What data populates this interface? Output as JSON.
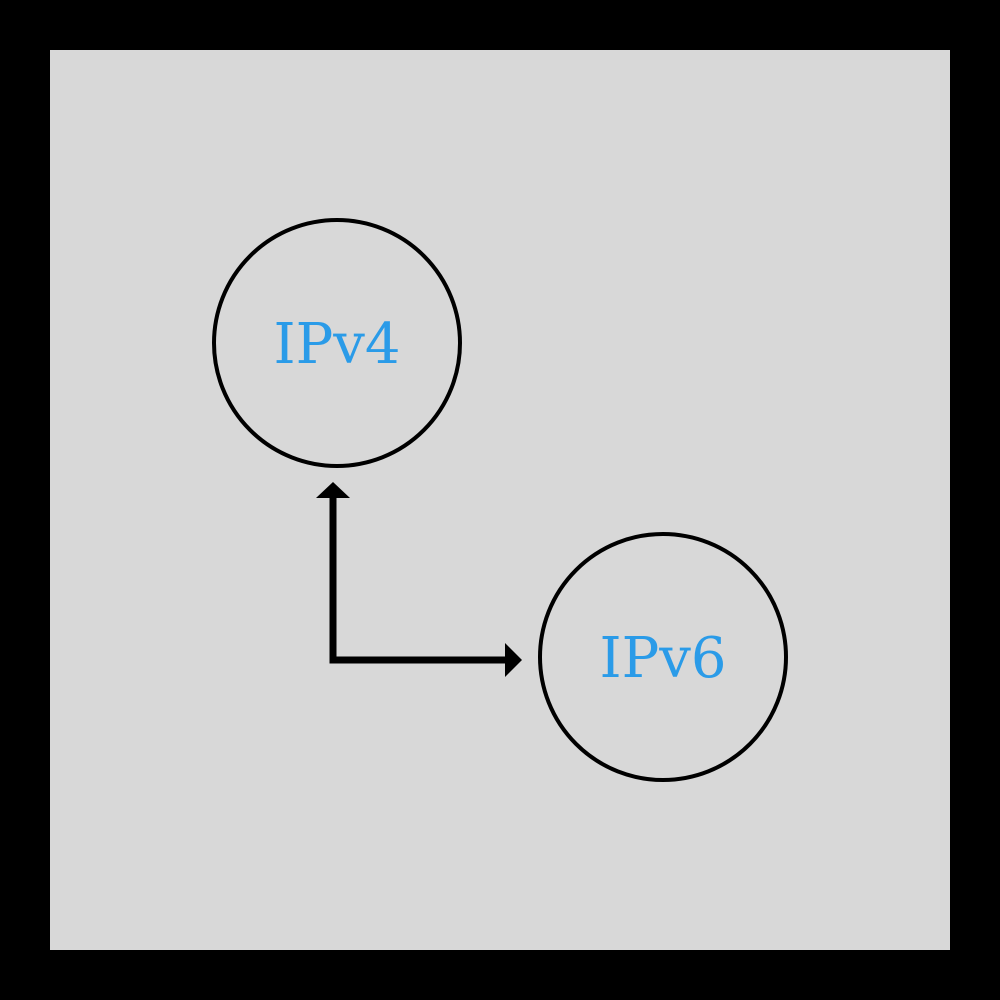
{
  "colors": {
    "frame": "#000000",
    "background": "#d8d8d8",
    "node_stroke": "#000000",
    "label": "#2a9be8",
    "arrow": "#000000"
  },
  "nodes": [
    {
      "id": "ipv4",
      "label": "IPv4"
    },
    {
      "id": "ipv6",
      "label": "IPv6"
    }
  ],
  "edges": [
    {
      "from": "ipv4",
      "to": "ipv6",
      "direction": "bidirectional",
      "style": "elbow"
    }
  ]
}
